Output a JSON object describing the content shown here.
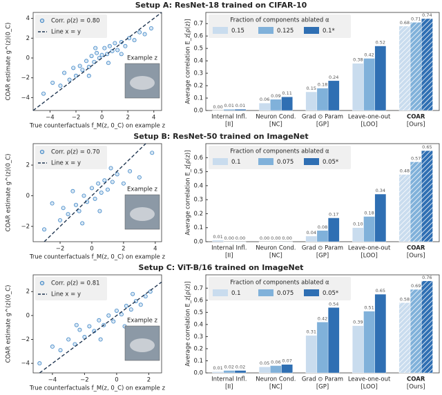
{
  "chart_data": [
    {
      "type": "scatter",
      "title": "Setup A: ResNet-18 trained on CIFAR-10",
      "xlabel": "True counterfactuals  f_M(z, 0_C) on example z",
      "ylabel": "COAR estimate  g^(z)(0_C)",
      "xlim": [
        -5.3,
        4.6
      ],
      "ylim": [
        -5.3,
        4.6
      ],
      "xticks": [
        {
          "value": -4,
          "label": "−4"
        },
        {
          "value": -2,
          "label": "−2"
        },
        0,
        2,
        4
      ],
      "yticks": [
        {
          "value": -4,
          "label": "−4"
        },
        {
          "value": -2,
          "label": "−2"
        },
        0,
        2,
        4
      ],
      "series": [
        {
          "name": "Corr. ρ(z) = 0.80",
          "color": "#3d85c6",
          "x": [
            -4.5,
            -3.8,
            -3.2,
            -2.9,
            -2.5,
            -2.2,
            -2.0,
            -1.7,
            -1.5,
            -1.2,
            -1.0,
            -0.8,
            -0.6,
            -0.4,
            -0.2,
            0,
            0.2,
            0.4,
            0.6,
            0.8,
            1.0,
            1.2,
            1.5,
            1.8,
            2.1,
            2.5,
            2.9,
            3.3,
            3.8,
            -1.0,
            0.5,
            1.5,
            -0.5
          ],
          "y": [
            -3.6,
            -2.5,
            -2.8,
            -1.5,
            -2.2,
            -1.0,
            -1.8,
            -0.8,
            -1.2,
            -0.3,
            -0.9,
            0.2,
            -0.4,
            0.5,
            0.0,
            0.3,
            1.0,
            0.4,
            1.2,
            0.7,
            1.5,
            0.8,
            1.6,
            1.2,
            2.0,
            1.8,
            2.6,
            2.4,
            3.0,
            -1.8,
            -0.5,
            0.4,
            1.0
          ]
        }
      ],
      "reference_line": {
        "name": "Line x = y",
        "color": "#1f3550"
      },
      "annotation": "Example z"
    },
    {
      "type": "bar",
      "ylabel": "Average correlation E_z[ρ(z)]",
      "legend_title": "Fraction of components ablated α",
      "categories": [
        "Internal Infl.",
        "Neuron Cond.",
        "Grad ⊙ Param",
        "Leave-one-out",
        "COAR"
      ],
      "category_tags": [
        "[II]",
        "[NC]",
        "[GP]",
        "[LOO]",
        "[Ours]"
      ],
      "hatch": [
        false,
        false,
        false,
        false,
        true
      ],
      "ylim": [
        0,
        0.79
      ],
      "yticks": [
        {
          "value": 0,
          "label": "0.0"
        },
        0.1,
        0.2,
        0.3,
        0.4,
        0.5,
        0.6,
        0.7
      ],
      "series": [
        {
          "name": "0.15",
          "color": "#c9dcee",
          "values": [
            0.0,
            0.06,
            0.15,
            0.38,
            0.68
          ],
          "value_labels": [
            "0.00",
            "0.06",
            "0.15",
            "0.38",
            "0.68"
          ]
        },
        {
          "name": "0.125",
          "color": "#80b1da",
          "values": [
            0.01,
            0.09,
            0.18,
            0.42,
            0.71
          ],
          "value_labels": [
            "0.01",
            "0.09",
            "0.18",
            "0.42",
            "0.71"
          ]
        },
        {
          "name": "0.1*",
          "color": "#2f6fb3",
          "values": [
            0.01,
            0.11,
            0.24,
            0.52,
            0.74
          ],
          "value_labels": [
            "0.01",
            "0.11",
            "0.24",
            "0.52",
            "0.74"
          ]
        }
      ]
    },
    {
      "type": "scatter",
      "title": "Setup B: ResNet-50 trained on ImageNet",
      "xlabel": "True counterfactuals  f_M(z, 0_C) on example z",
      "ylabel": "COAR estimate  g^(z)(0_C)",
      "xlim": [
        -3.7,
        4.4
      ],
      "ylim": [
        -3.0,
        3.4
      ],
      "xticks": [
        {
          "value": -2,
          "label": "−2"
        },
        0,
        2,
        4
      ],
      "yticks": [
        {
          "value": -2,
          "label": "−2"
        },
        0,
        2
      ],
      "series": [
        {
          "name": "Corr. ρ(z) = 0.70",
          "color": "#3d85c6",
          "x": [
            -3.0,
            -2.5,
            -2.0,
            -1.8,
            -1.5,
            -1.2,
            -1.0,
            -0.8,
            -0.5,
            -0.3,
            0,
            0.2,
            0.4,
            0.6,
            0.8,
            1.0,
            1.3,
            1.6,
            2.0,
            2.4,
            3.0,
            3.8,
            -0.6,
            0.5,
            1.2
          ],
          "y": [
            -2.2,
            -0.5,
            -1.6,
            -0.8,
            -1.2,
            0.3,
            -0.6,
            -1.0,
            0.0,
            -0.4,
            0.5,
            -0.2,
            0.8,
            0.2,
            1.0,
            0.4,
            0.9,
            1.4,
            0.8,
            1.6,
            1.2,
            2.8,
            -1.8,
            -1.0,
            1.8
          ]
        }
      ],
      "reference_line": {
        "name": "Line x = y",
        "color": "#1f3550"
      },
      "annotation": "Example z"
    },
    {
      "type": "bar",
      "ylabel": "Average correlation E_z[ρ(z)]",
      "legend_title": "Fraction of components ablated α",
      "categories": [
        "Internal Infl.",
        "Neuron Cond.",
        "Grad ⊙ Param",
        "Leave-one-out",
        "COAR"
      ],
      "category_tags": [
        "[II]",
        "[NC]",
        "[GP]",
        "[LOO]",
        "[Ours]"
      ],
      "hatch": [
        false,
        false,
        false,
        false,
        true
      ],
      "ylim": [
        0,
        0.7
      ],
      "yticks": [
        {
          "value": 0,
          "label": "0.0"
        },
        0.1,
        0.2,
        0.3,
        0.4,
        0.5,
        0.6
      ],
      "series": [
        {
          "name": "0.1",
          "color": "#c9dcee",
          "values": [
            0.01,
            0.0,
            0.04,
            0.1,
            0.48
          ],
          "value_labels": [
            "0.01",
            "0.00",
            "0.04",
            "0.10",
            "0.48"
          ]
        },
        {
          "name": "0.075",
          "color": "#80b1da",
          "values": [
            0.0,
            0.0,
            0.08,
            0.18,
            0.57
          ],
          "value_labels": [
            "0.00",
            "0.00",
            "0.08",
            "0.18",
            "0.57"
          ]
        },
        {
          "name": "0.05*",
          "color": "#2f6fb3",
          "values": [
            0.0,
            0.0,
            0.17,
            0.34,
            0.65
          ],
          "value_labels": [
            "0.00",
            "0.00",
            "0.17",
            "0.34",
            "0.65"
          ]
        }
      ]
    },
    {
      "type": "scatter",
      "title": "Setup C: ViT-B/16 trained on ImageNet",
      "xlabel": "True counterfactuals  f_M(z, 0_C) on example z",
      "ylabel": "COAR estimate  g^(z)(0_C)",
      "xlim": [
        -5.2,
        2.8
      ],
      "ylim": [
        -4.8,
        3.4
      ],
      "xticks": [
        {
          "value": -4,
          "label": "−4"
        },
        {
          "value": -2,
          "label": "−2"
        },
        0,
        2
      ],
      "yticks": [
        {
          "value": -4,
          "label": "−4"
        },
        {
          "value": -2,
          "label": "−2"
        },
        0,
        2
      ],
      "series": [
        {
          "name": "Corr. ρ(z) = 0.81",
          "color": "#3d85c6",
          "x": [
            -4.8,
            -4.0,
            -3.5,
            -3.0,
            -2.6,
            -2.3,
            -2.0,
            -1.7,
            -1.4,
            -1.1,
            -0.8,
            -0.5,
            -0.2,
            0,
            0.3,
            0.6,
            0.9,
            1.2,
            1.5,
            1.8,
            2.1,
            -2.5,
            -1.0,
            0.5,
            1.0
          ],
          "y": [
            -4.0,
            -2.6,
            -2.9,
            -2.0,
            -2.4,
            -1.2,
            -1.8,
            -0.9,
            -1.3,
            -0.4,
            -0.8,
            0.0,
            -0.5,
            0.4,
            0.1,
            0.8,
            0.5,
            1.2,
            0.9,
            1.6,
            2.0,
            -0.8,
            -2.0,
            -0.9,
            1.8
          ]
        }
      ],
      "reference_line": {
        "name": "Line x = y",
        "color": "#1f3550"
      },
      "annotation": "Example z"
    },
    {
      "type": "bar",
      "ylabel": "Average correlation E_z[ρ(z)]",
      "legend_title": "Fraction of components ablated α",
      "categories": [
        "Internal Infl.",
        "Neuron Cond.",
        "Grad ⊙ Param",
        "Leave-one-out",
        "COAR"
      ],
      "category_tags": [
        "[II]",
        "[NC]",
        "[GP]",
        "[LOO]",
        "[Ours]"
      ],
      "hatch": [
        false,
        false,
        false,
        false,
        true
      ],
      "ylim": [
        0,
        0.81
      ],
      "yticks": [
        {
          "value": 0,
          "label": "0.0"
        },
        0.1,
        0.2,
        0.3,
        0.4,
        0.5,
        0.6,
        0.7
      ],
      "series": [
        {
          "name": "0.1",
          "color": "#c9dcee",
          "values": [
            0.01,
            0.05,
            0.31,
            0.39,
            0.58
          ],
          "value_labels": [
            "0.01",
            "0.05",
            "0.31",
            "0.39",
            "0.58"
          ]
        },
        {
          "name": "0.075",
          "color": "#80b1da",
          "values": [
            0.02,
            0.06,
            0.42,
            0.51,
            0.69
          ],
          "value_labels": [
            "0.02",
            "0.06",
            "0.42",
            "0.51",
            "0.69"
          ]
        },
        {
          "name": "0.05*",
          "color": "#2f6fb3",
          "values": [
            0.02,
            0.07,
            0.54,
            0.65,
            0.76
          ],
          "value_labels": [
            "0.02",
            "0.07",
            "0.54",
            "0.65",
            "0.76"
          ]
        }
      ]
    }
  ]
}
